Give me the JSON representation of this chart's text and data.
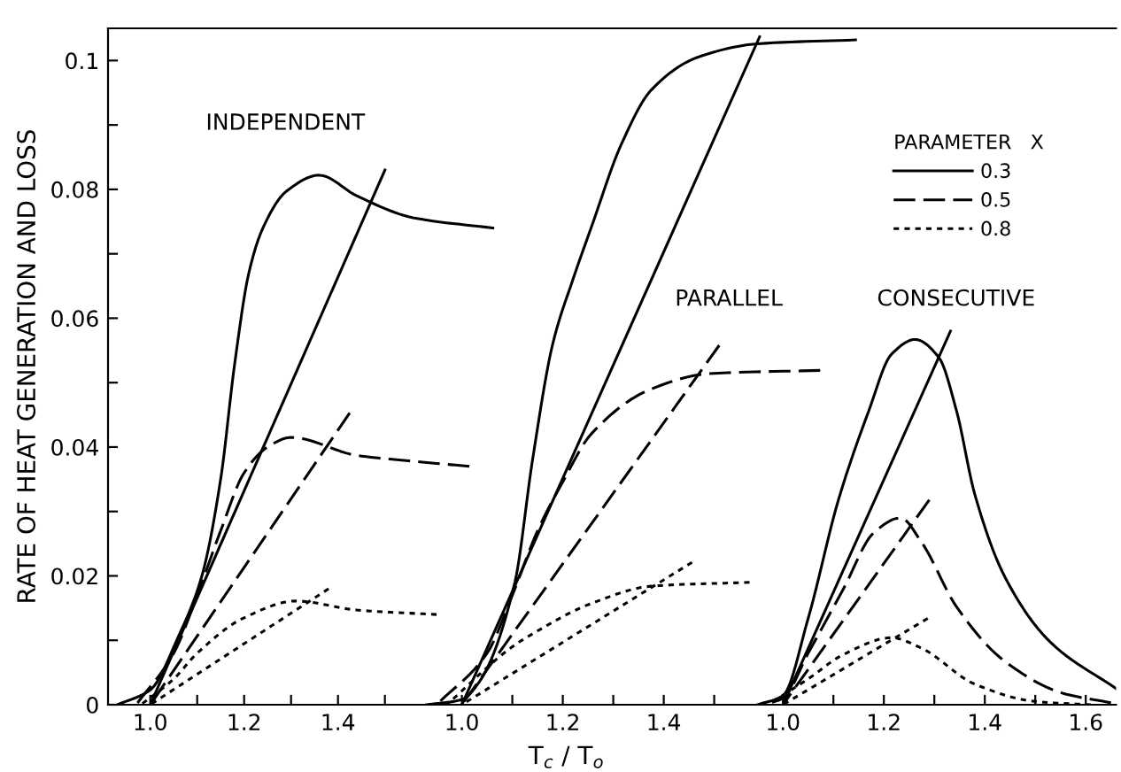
{
  "chart_data": [
    {
      "type": "line",
      "ylabel": "RATE OF HEAT GENERATION AND LOSS",
      "annotations": [
        "INDEPENDENT"
      ],
      "xlim": [
        0.91,
        1.75
      ],
      "ylim": [
        0,
        0.105
      ],
      "xticks": [
        {
          "value": 1.0,
          "label": "1.0"
        },
        {
          "value": 1.1,
          "label": null
        },
        1.2,
        {
          "value": 1.3,
          "label": null
        },
        1.4,
        {
          "value": 1.5,
          "label": null
        }
      ],
      "yticks": [
        0,
        {
          "value": 0.01,
          "label": null
        },
        0.02,
        {
          "value": 0.03,
          "label": null
        },
        0.04,
        {
          "value": 0.05,
          "label": null
        },
        0.06,
        {
          "value": 0.07,
          "label": null
        },
        0.08,
        {
          "value": 0.09,
          "label": null
        },
        0.1
      ],
      "series": [
        {
          "color": "#000000",
          "line_style": "solid",
          "x": [
            0.93,
            1.0,
            1.06,
            1.11,
            1.15,
            1.18,
            1.21,
            1.24,
            1.29,
            1.36,
            1.44,
            1.56,
            1.73
          ],
          "values": [
            0,
            0.0023,
            0.0106,
            0.02,
            0.035,
            0.053,
            0.067,
            0.074,
            0.0797,
            0.0822,
            0.079,
            0.0756,
            0.074
          ]
        },
        {
          "color": "#000000",
          "line_style": "solid",
          "x": [
            1.0,
            1.5
          ],
          "values": [
            0,
            0.083
          ]
        },
        {
          "color": "#000000",
          "line_style": "dashed",
          "x": [
            0.97,
            1.05,
            1.1,
            1.15,
            1.2,
            1.25,
            1.3,
            1.44,
            1.56,
            1.68
          ],
          "values": [
            0,
            0.008,
            0.017,
            0.027,
            0.036,
            0.04,
            0.0415,
            0.0387,
            0.0378,
            0.037
          ]
        },
        {
          "color": "#000000",
          "line_style": "dashed",
          "x": [
            1.0,
            1.425
          ],
          "values": [
            0,
            0.0453
          ]
        },
        {
          "color": "#000000",
          "line_style": "dotted",
          "x": [
            0.98,
            1.05,
            1.1,
            1.2,
            1.31,
            1.44,
            1.61
          ],
          "values": [
            0,
            0.004,
            0.008,
            0.0135,
            0.0161,
            0.0147,
            0.014
          ]
        },
        {
          "color": "#000000",
          "line_style": "dotted",
          "x": [
            1.0,
            1.38
          ],
          "values": [
            0,
            0.018
          ]
        }
      ]
    },
    {
      "type": "line",
      "xlabel": "T$_{c}$ / T$_{o}$",
      "annotations": [
        "PARALLEL"
      ],
      "xlim": [
        0.92,
        1.79
      ],
      "ylim": [
        0,
        0.105
      ],
      "tick_labels": "x",
      "xticks": [
        {
          "value": 1.0,
          "label": "1.0"
        },
        {
          "value": 1.1,
          "label": null
        },
        1.2,
        {
          "value": 1.3,
          "label": null
        },
        1.4,
        {
          "value": 1.5,
          "label": null
        }
      ],
      "series": [
        {
          "color": "#000000",
          "line_style": "solid",
          "x": [
            0.93,
            1.0,
            1.035,
            1.105,
            1.14,
            1.18,
            1.22,
            1.256,
            1.316,
            1.375,
            1.467,
            1.586,
            1.78
          ],
          "values": [
            0,
            0.0008,
            0.0036,
            0.019,
            0.038,
            0.056,
            0.066,
            0.074,
            0.087,
            0.0954,
            0.1005,
            0.1026,
            0.1032
          ]
        },
        {
          "color": "#000000",
          "line_style": "solid",
          "x": [
            1.0,
            1.59
          ],
          "values": [
            0,
            0.1037
          ]
        },
        {
          "color": "#000000",
          "line_style": "dashed",
          "x": [
            0.95,
            1.05,
            1.1,
            1.15,
            1.2,
            1.256,
            1.375,
            1.49,
            1.71
          ],
          "values": [
            0,
            0.008,
            0.017,
            0.027,
            0.0346,
            0.042,
            0.049,
            0.0514,
            0.0519
          ]
        },
        {
          "color": "#000000",
          "line_style": "dashed",
          "x": [
            1.0,
            1.51
          ],
          "values": [
            0,
            0.0558
          ]
        },
        {
          "color": "#000000",
          "line_style": "dotted",
          "x": [
            0.97,
            1.1,
            1.14,
            1.256,
            1.375,
            1.57
          ],
          "values": [
            0,
            0.009,
            0.011,
            0.0157,
            0.0184,
            0.019
          ]
        },
        {
          "color": "#000000",
          "line_style": "dotted",
          "x": [
            1.0,
            1.456
          ],
          "values": [
            0,
            0.0221
          ]
        }
      ]
    },
    {
      "type": "line",
      "annotations": [
        "CONSECUTIVE"
      ],
      "xlim": [
        0.94,
        1.66
      ],
      "ylim": [
        0,
        0.105
      ],
      "tick_labels": "x",
      "legend": "top right",
      "legend_title": "PARAMETER   X",
      "xticks": [
        {
          "value": 1.0,
          "label": "1.0"
        },
        {
          "value": 1.1,
          "label": null
        },
        1.2,
        {
          "value": 1.3,
          "label": null
        },
        1.4,
        {
          "value": 1.5,
          "label": null
        },
        1.6
      ],
      "series": [
        {
          "name": "0.3",
          "color": "#000000",
          "line_style": "solid",
          "x": [
            0.95,
            1.0,
            1.05,
            1.11,
            1.17,
            1.215,
            1.262,
            1.309,
            1.344,
            1.38,
            1.44,
            1.53,
            1.66
          ],
          "values": [
            0,
            0.0014,
            0.0134,
            0.0318,
            0.0456,
            0.0544,
            0.0567,
            0.0539,
            0.0456,
            0.0327,
            0.0198,
            0.0097,
            0.0025
          ]
        },
        {
          "color": "#000000",
          "line_style": "solid",
          "x": [
            1.0,
            1.332
          ],
          "values": [
            0,
            0.058
          ]
        },
        {
          "name": "0.5",
          "color": "#000000",
          "line_style": "dashed",
          "x": [
            0.96,
            1.0,
            1.05,
            1.12,
            1.18,
            1.233,
            1.274,
            1.344,
            1.437,
            1.554,
            1.65
          ],
          "values": [
            0,
            0.001,
            0.008,
            0.018,
            0.0267,
            0.029,
            0.0253,
            0.0152,
            0.0069,
            0.0018,
            0.0003
          ]
        },
        {
          "color": "#000000",
          "line_style": "dashed",
          "x": [
            1.0,
            1.29
          ],
          "values": [
            0,
            0.0318
          ]
        },
        {
          "name": "0.8",
          "color": "#000000",
          "line_style": "dotted",
          "x": [
            0.97,
            1.05,
            1.12,
            1.215,
            1.274,
            1.38,
            1.5,
            1.61
          ],
          "values": [
            0,
            0.004,
            0.0078,
            0.0104,
            0.0088,
            0.0032,
            0.0005,
            0
          ]
        },
        {
          "color": "#000000",
          "line_style": "dotted",
          "x": [
            1.0,
            1.287
          ],
          "values": [
            0,
            0.0134
          ]
        }
      ]
    }
  ]
}
